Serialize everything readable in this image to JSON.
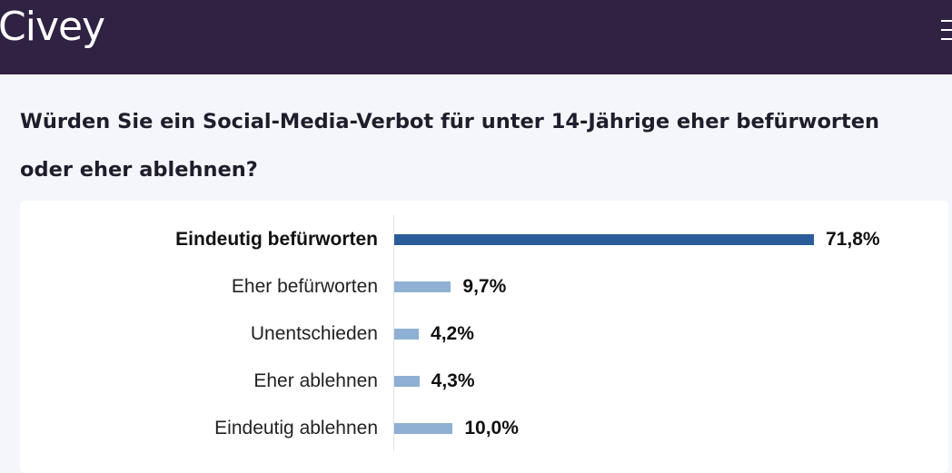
{
  "header": {
    "logo": "Civey",
    "menu_icon": "hamburger-menu-icon"
  },
  "question": "Würden Sie ein Social-Media-Verbot für unter 14-Jährige eher befürworten oder eher ablehnen?",
  "colors": {
    "header_bg": "#2f2243",
    "highlight_bar": "#2b5c9a",
    "bar": "#8fb0d3"
  },
  "chart_data": {
    "type": "bar",
    "orientation": "horizontal",
    "title": "Würden Sie ein Social-Media-Verbot für unter 14-Jährige eher befürworten oder eher ablehnen?",
    "categories": [
      "Eindeutig befürworten",
      "Eher befürworten",
      "Unentschieden",
      "Eher ablehnen",
      "Eindeutig ablehnen"
    ],
    "values": [
      71.8,
      9.7,
      4.2,
      4.3,
      10.0
    ],
    "value_labels": [
      "71,8%",
      "9,7%",
      "4,2%",
      "4,3%",
      "10,0%"
    ],
    "highlighted_index": 0,
    "unit": "%",
    "xlim": [
      0,
      100
    ]
  }
}
